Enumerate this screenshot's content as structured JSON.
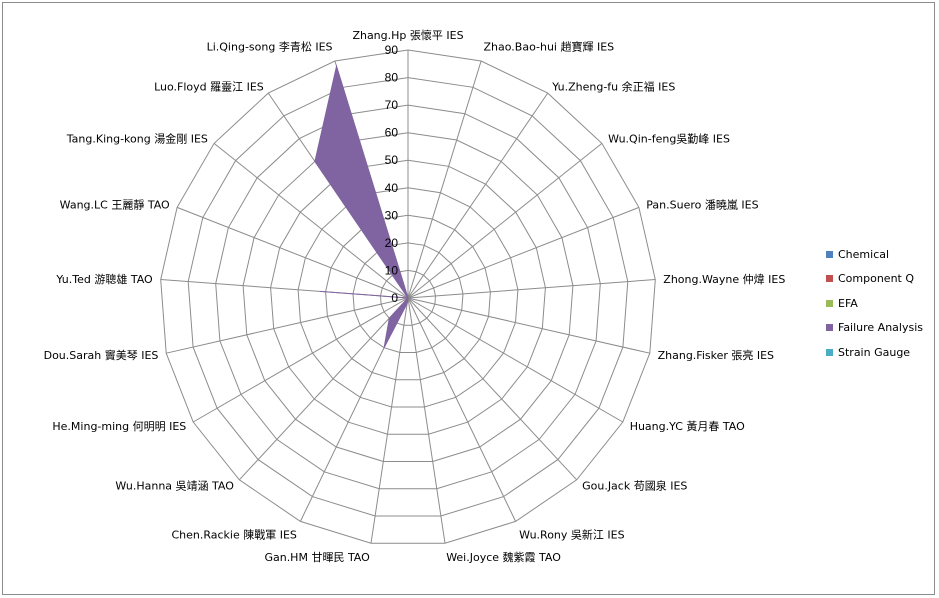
{
  "chart_data": {
    "type": "radar",
    "categories": [
      "Zhang.Hp 張懷平 IES",
      "Zhao.Bao-hui 趙寶輝 IES",
      "Yu.Zheng-fu 余正福 IES",
      "Wu.Qin-feng吳勤峰 IES",
      "Pan.Suero 潘曉嵐 IES",
      "Zhong.Wayne 仲煒 IES",
      "Zhang.Fisker 張亮 IES",
      "Huang.YC 黃月春 TAO",
      "Gou.Jack 苟國泉 IES",
      "Wu.Rony 吳新江 IES",
      "Wei.Joyce 魏紫霞 TAO",
      "Gan.HM 甘暉民 TAO",
      "Chen.Rackie 陳戰軍 IES",
      "Wu.Hanna 吳靖涵 TAO",
      "He.Ming-ming 何明明 IES",
      "Dou.Sarah 竇美琴 IES",
      "Yu.Ted 游聰雄 TAO",
      "Wang.LC 王麗靜 TAO",
      "Tang.King-kong 湯金剛 IES",
      "Luo.Floyd 羅靈江 IES",
      "Li.Qing-song 李青松 IES"
    ],
    "series": [
      {
        "name": "Chemical",
        "color": "#4f81bd",
        "values": [
          0,
          0,
          0,
          0,
          0,
          0,
          0,
          0,
          0,
          0,
          0,
          0,
          0,
          0,
          0,
          0,
          0,
          0,
          0,
          0,
          0
        ]
      },
      {
        "name": "Component Q",
        "color": "#c0504d",
        "values": [
          0,
          0,
          0,
          0,
          0,
          0,
          0,
          0,
          0,
          0,
          0,
          0,
          0,
          0,
          0,
          0,
          0,
          0,
          0,
          0,
          0
        ]
      },
      {
        "name": "EFA",
        "color": "#9bbb59",
        "values": [
          0,
          0,
          0,
          0,
          0,
          0,
          0,
          0,
          0,
          0,
          0,
          0,
          0,
          0,
          0,
          0,
          0,
          0,
          0,
          0,
          0
        ]
      },
      {
        "name": "Failure Analysis",
        "color": "#8064a2",
        "values": [
          0,
          0,
          0,
          0,
          0,
          0,
          0,
          0,
          0,
          0,
          0,
          2,
          20,
          10,
          0,
          0,
          32,
          0,
          0,
          60,
          88
        ]
      },
      {
        "name": "Strain Gauge",
        "color": "#4bacc6",
        "values": [
          0,
          0,
          0,
          0,
          0,
          0,
          0,
          0,
          0,
          0,
          0,
          0,
          0,
          0,
          0,
          0,
          0,
          0,
          0,
          0,
          0
        ]
      }
    ],
    "rlim": [
      0,
      90
    ],
    "ticks": [
      0,
      10,
      20,
      30,
      40,
      50,
      60,
      70,
      80,
      90
    ],
    "grid": true,
    "legend_position": "right"
  }
}
